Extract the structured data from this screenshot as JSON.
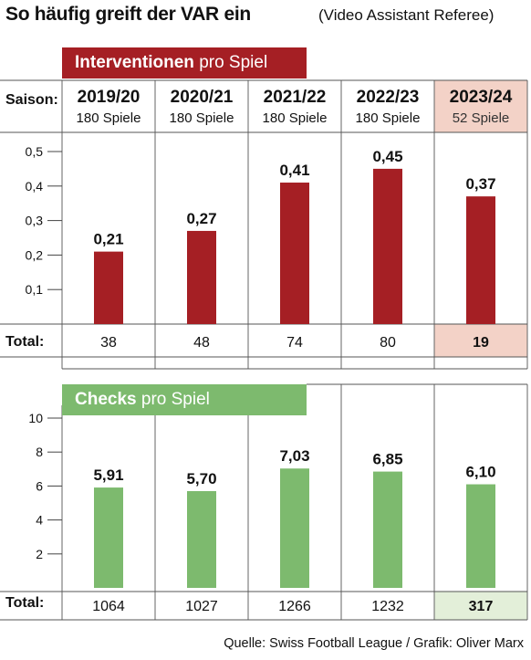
{
  "title": "So häufig greift der VAR ein",
  "subtitle": "(Video Assistant Referee)",
  "source": "Quelle: Swiss Football League / Grafik: Oliver Marx",
  "season_label": "Saison:",
  "total_label": "Total:",
  "seasons": [
    {
      "label": "2019/20",
      "games": "180 Spiele"
    },
    {
      "label": "2020/21",
      "games": "180 Spiele"
    },
    {
      "label": "2021/22",
      "games": "180 Spiele"
    },
    {
      "label": "2022/23",
      "games": "180 Spiele"
    },
    {
      "label": "2023/24",
      "games": "52 Spiele"
    }
  ],
  "colors": {
    "red": "#a51f24",
    "green": "#7dba6e",
    "highlight_red": "#f3d2c7",
    "highlight_green": "#e3efd9"
  },
  "chart_data": [
    {
      "type": "bar",
      "title": "Interventionen pro Spiel",
      "title_bold": "Interventionen",
      "title_rest": "pro Spiel",
      "categories": [
        "2019/20",
        "2020/21",
        "2021/22",
        "2022/23",
        "2023/24"
      ],
      "values": [
        0.21,
        0.27,
        0.41,
        0.45,
        0.37
      ],
      "value_labels": [
        "0,21",
        "0,27",
        "0,41",
        "0,45",
        "0,37"
      ],
      "yticks": [
        "0,1",
        "0,2",
        "0,3",
        "0,4",
        "0,5"
      ],
      "ytick_values": [
        0.1,
        0.2,
        0.3,
        0.4,
        0.5
      ],
      "ylim": [
        0,
        0.5
      ],
      "totals": [
        "38",
        "48",
        "74",
        "80",
        "19"
      ],
      "color": "#a51f24"
    },
    {
      "type": "bar",
      "title": "Checks pro Spiel",
      "title_bold": "Checks",
      "title_rest": "pro Spiel",
      "categories": [
        "2019/20",
        "2020/21",
        "2021/22",
        "2022/23",
        "2023/24"
      ],
      "values": [
        5.91,
        5.7,
        7.03,
        6.85,
        6.1
      ],
      "value_labels": [
        "5,91",
        "5,70",
        "7,03",
        "6,85",
        "6,10"
      ],
      "yticks": [
        "2",
        "4",
        "6",
        "8",
        "10"
      ],
      "ytick_values": [
        2,
        4,
        6,
        8,
        10
      ],
      "ylim": [
        0,
        10
      ],
      "totals": [
        "1064",
        "1027",
        "1266",
        "1232",
        "317"
      ],
      "color": "#7dba6e"
    }
  ]
}
